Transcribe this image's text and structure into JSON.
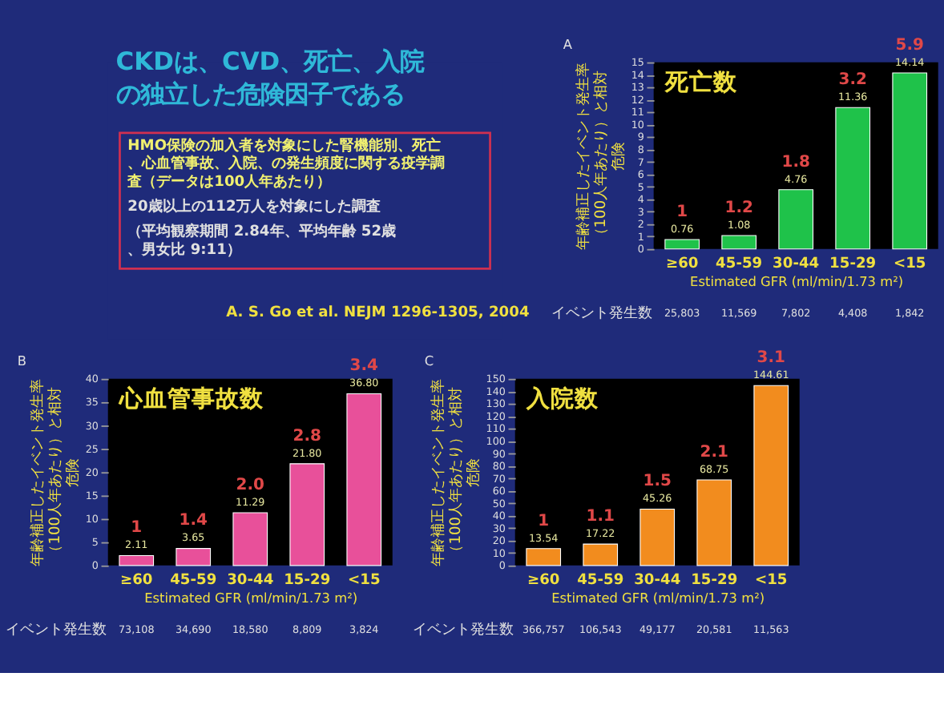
{
  "chart_data": [
    {
      "type": "other",
      "title": "CKDは、CVD、死亡、入院の独立した危険因子である",
      "annotations": [
        "HMO保険の加入者を対象にした腎機能別、死亡、心血管事故、入院、の発生頻度に関する疫学調査（データは100人年あたり）",
        "20歳以上の112万人を対象にした調査",
        "（平均観察期間 2.84年、平均年齢 52歳、男女比 9:11）",
        "A. S. Go et al. NEJM 1296-1305, 2004"
      ]
    },
    {
      "type": "bar",
      "title": "死亡数",
      "xlabel": "Estimated GFR (ml/min/1.73 m²)",
      "ylabel": "年齢補正したイベント発生率（100人年あたり）と相対危険",
      "categories": [
        "≥60",
        "45-59",
        "30-44",
        "15-29",
        "<15"
      ],
      "values": [
        0.76,
        1.08,
        4.76,
        11.36,
        14.14
      ],
      "value_labels": [
        "0.76",
        "1.08",
        "4.76",
        "11.36",
        "14.14"
      ],
      "color": "#1fc24a",
      "ylim": [
        0,
        15
      ],
      "yticks": [
        0,
        1,
        2,
        3,
        4,
        5,
        6,
        7,
        8,
        9,
        10,
        11,
        12,
        13,
        14,
        15
      ],
      "grid": false,
      "annotations": [
        "A",
        "イベント発生数",
        "1",
        "1.2",
        "1.8",
        "3.2",
        "5.9",
        "25,803",
        "11,569",
        "7,802",
        "4,408",
        "1,842"
      ]
    },
    {
      "type": "bar",
      "title": "心血管事故数",
      "xlabel": "Estimated GFR (ml/min/1.73 m²)",
      "ylabel": "年齢補正したイベント発生率（100人年あたり）と相対危険",
      "categories": [
        "≥60",
        "45-59",
        "30-44",
        "15-29",
        "<15"
      ],
      "values": [
        2.11,
        3.65,
        11.29,
        21.8,
        36.8
      ],
      "value_labels": [
        "2.11",
        "3.65",
        "11.29",
        "21.80",
        "36.80"
      ],
      "color": "#e8509a",
      "ylim": [
        0,
        40
      ],
      "yticks": [
        0,
        5,
        10,
        15,
        20,
        25,
        30,
        35,
        40
      ],
      "grid": false,
      "annotations": [
        "B",
        "イベント発生数",
        "1",
        "1.4",
        "2.0",
        "2.8",
        "3.4",
        "73,108",
        "34,690",
        "18,580",
        "8,809",
        "3,824"
      ]
    },
    {
      "type": "bar",
      "title": "入院数",
      "xlabel": "Estimated GFR (ml/min/1.73 m²)",
      "ylabel": "年齢補正したイベント発生率（100人年あたり）と相対危険",
      "categories": [
        "≥60",
        "45-59",
        "30-44",
        "15-29",
        "<15"
      ],
      "values": [
        13.54,
        17.22,
        45.26,
        68.75,
        144.61
      ],
      "value_labels": [
        "13.54",
        "17.22",
        "45.26",
        "68.75",
        "144.61"
      ],
      "color": "#f28c1e",
      "ylim": [
        0,
        150
      ],
      "yticks": [
        0,
        10,
        20,
        30,
        40,
        50,
        60,
        70,
        80,
        90,
        100,
        110,
        120,
        130,
        140,
        150
      ],
      "grid": false,
      "annotations": [
        "C",
        "イベント発生数",
        "1",
        "1.1",
        "1.5",
        "2.1",
        "3.1",
        "366,757",
        "106,543",
        "49,177",
        "20,581",
        "11,563"
      ]
    }
  ]
}
